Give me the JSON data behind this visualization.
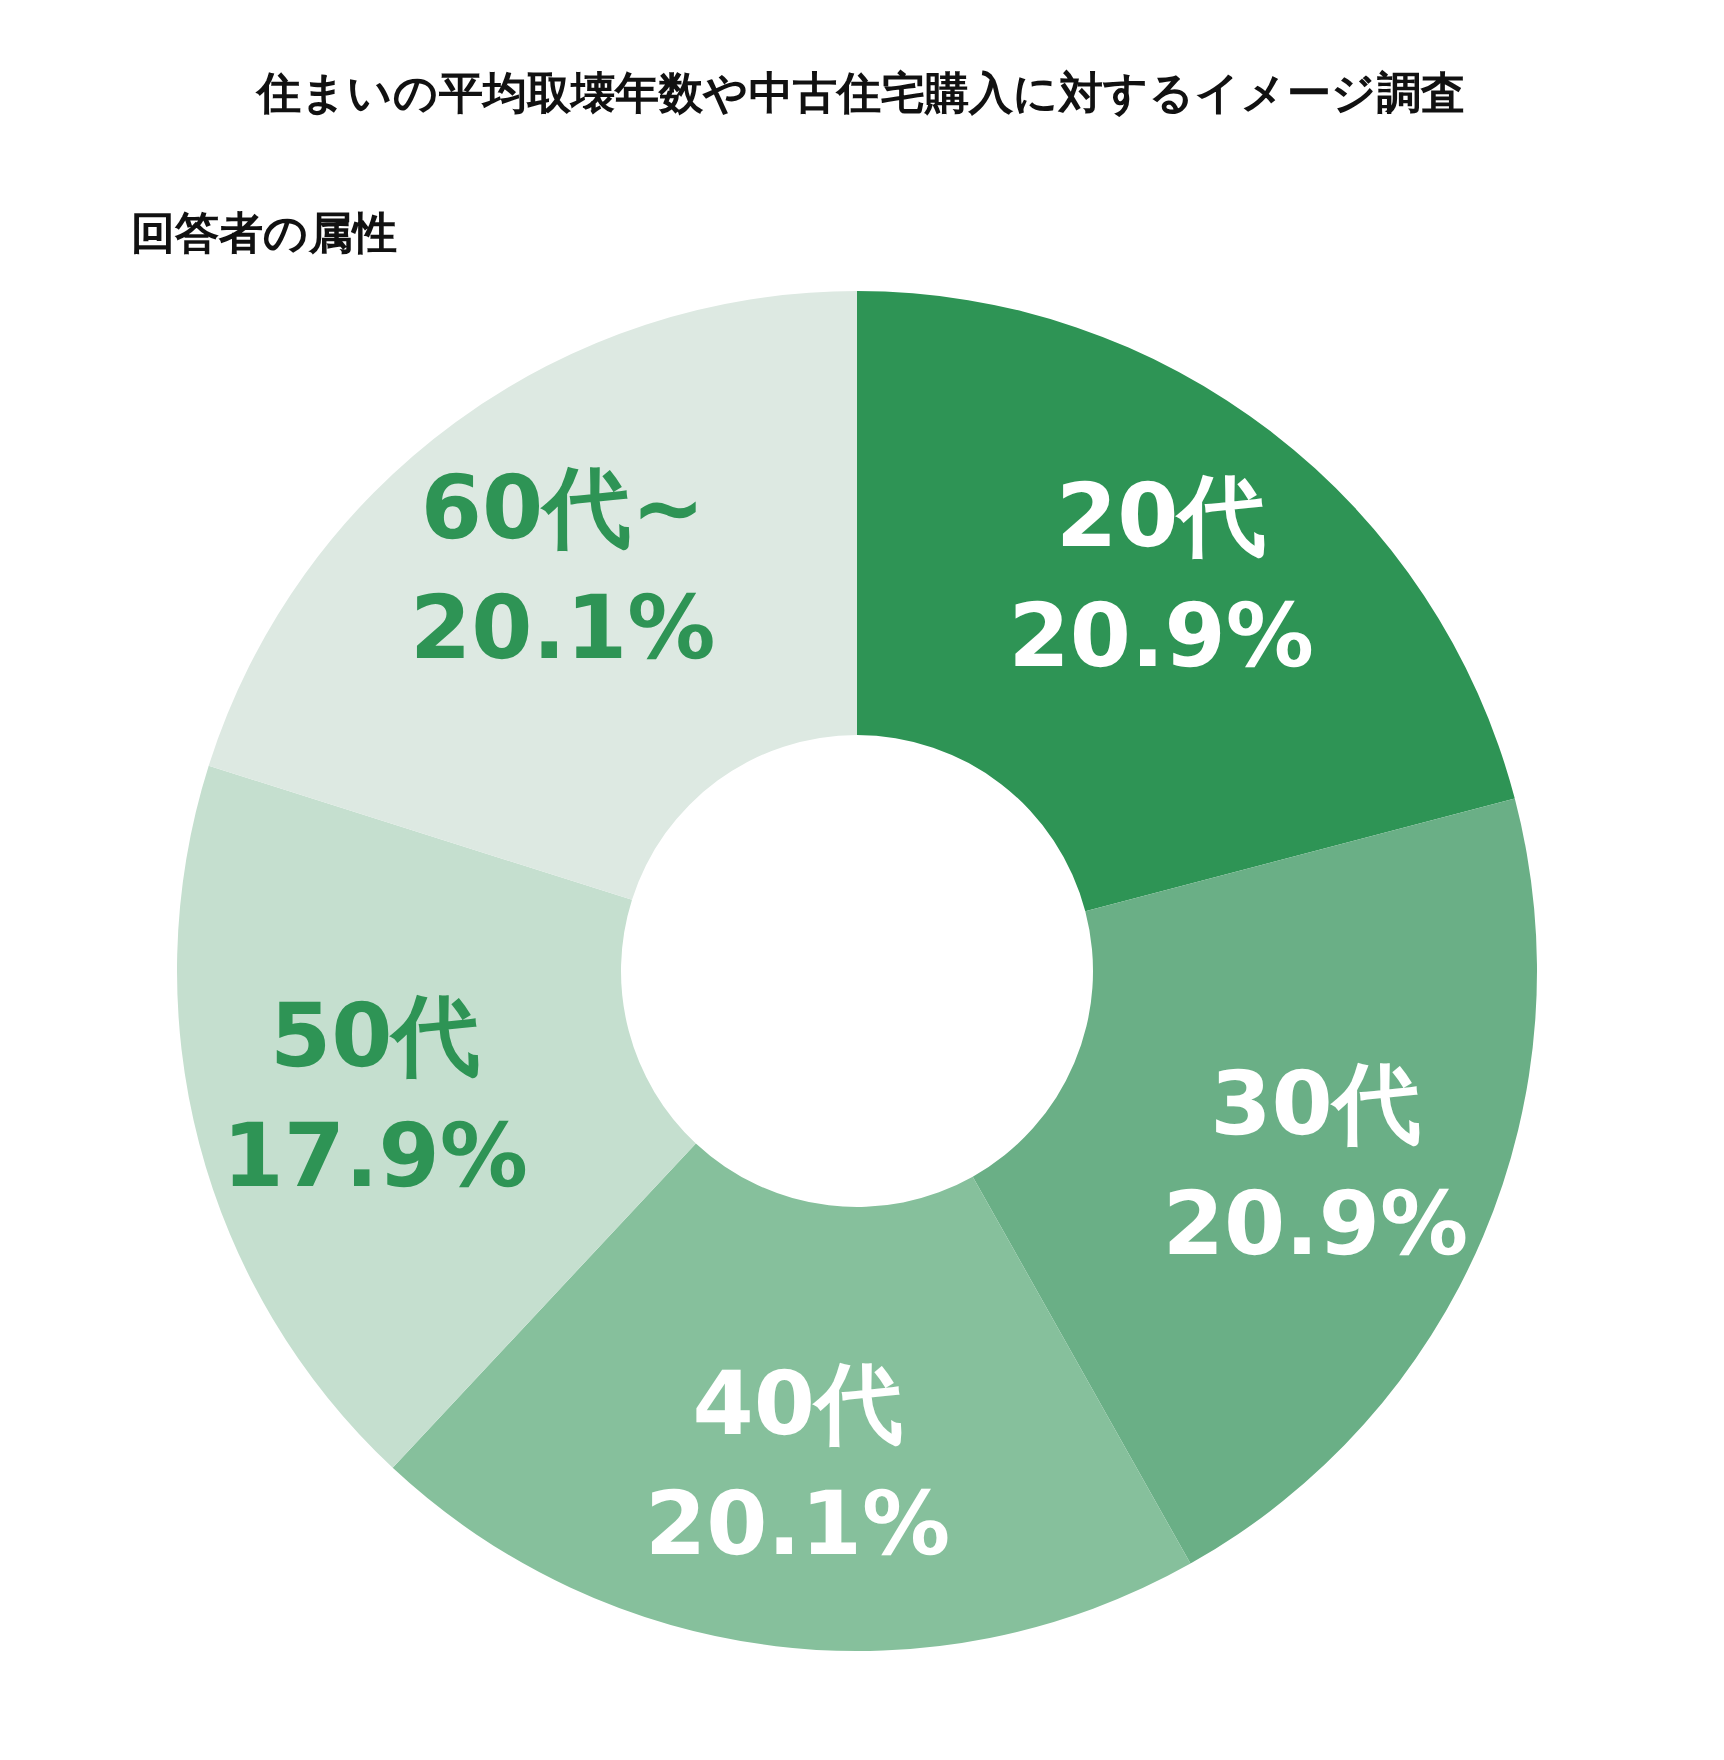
{
  "chart_data": {
    "type": "donut",
    "title": "住まいの平均取壊年数や中古住宅購入に対するイメージ調査",
    "subtitle": "回答者の属性",
    "categories": [
      "20代",
      "30代",
      "40代",
      "50代",
      "60代~"
    ],
    "values": [
      20.9,
      20.9,
      20.1,
      17.9,
      20.1
    ],
    "value_labels": [
      "20.9%",
      "20.9%",
      "20.1%",
      "17.9%",
      "20.1%"
    ],
    "colors": [
      "#2e9455",
      "#6aaf86",
      "#86c09c",
      "#c5dfcf",
      "#dde9e2"
    ]
  }
}
